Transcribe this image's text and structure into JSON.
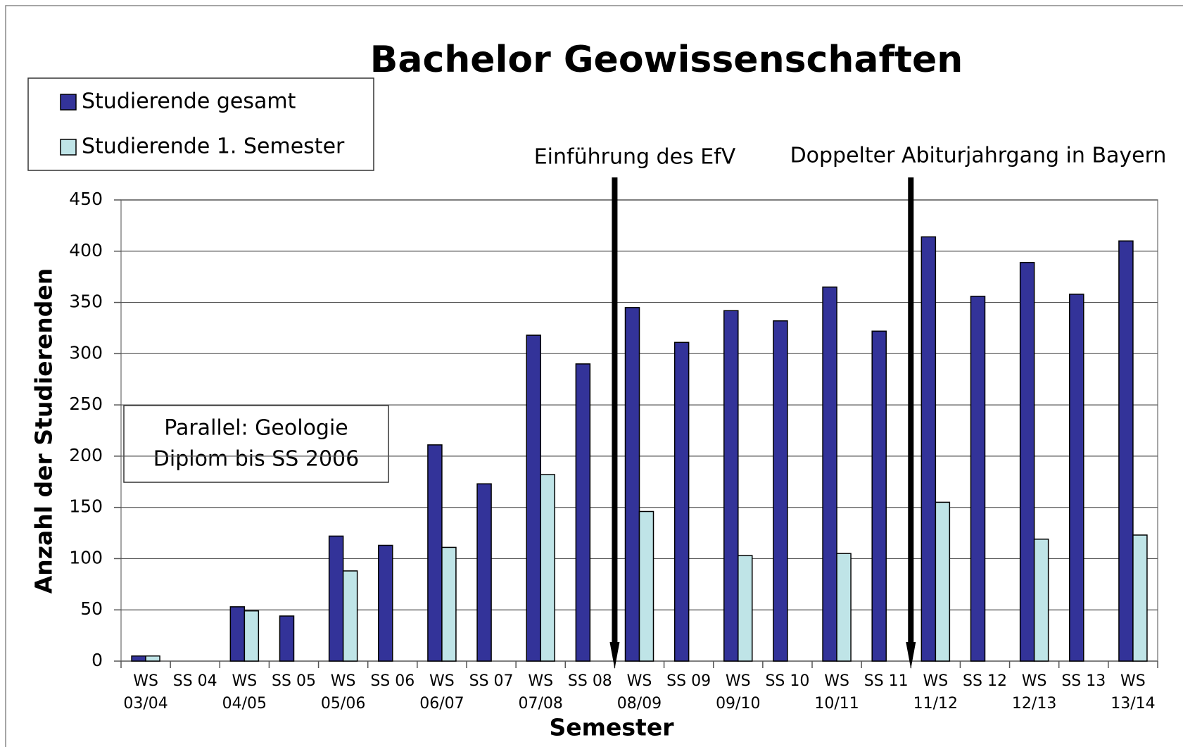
{
  "chart_data": {
    "type": "bar",
    "title": "Bachelor Geowissenschaften",
    "x_label": "Semester",
    "y_label": "Anzahl der Studierenden",
    "categories": [
      "WS 03/04",
      "SS 04",
      "WS 04/05",
      "SS 05",
      "WS 05/06",
      "SS 06",
      "WS 06/07",
      "SS 07",
      "WS 07/08",
      "SS 08",
      "WS 08/09",
      "SS 09",
      "WS 09/10",
      "SS 10",
      "WS 10/11",
      "SS 11",
      "WS 11/12",
      "SS 12",
      "WS 12/13",
      "SS 13",
      "WS 13/14"
    ],
    "series": [
      {
        "name": "Studierende gesamt",
        "color": "#333399",
        "values": [
          5,
          null,
          53,
          44,
          122,
          113,
          211,
          173,
          318,
          290,
          345,
          311,
          342,
          332,
          365,
          322,
          414,
          356,
          389,
          358,
          410
        ]
      },
      {
        "name": "Studierende 1. Semester",
        "color": "#bfe4e7",
        "values": [
          5,
          null,
          49,
          null,
          88,
          null,
          111,
          null,
          182,
          null,
          146,
          null,
          103,
          null,
          105,
          null,
          155,
          null,
          119,
          null,
          123
        ]
      }
    ],
    "ylim": [
      0,
      450
    ],
    "yticks": [
      0,
      50,
      100,
      150,
      200,
      250,
      300,
      350,
      400,
      450
    ],
    "grid": true,
    "legend": "top-left",
    "annotations": [
      "Einführung des EfV",
      "Doppelter Abiturjahrgang in Bayern"
    ],
    "note": [
      "Parallel: Geologie",
      "Diplom bis SS 2006"
    ]
  }
}
